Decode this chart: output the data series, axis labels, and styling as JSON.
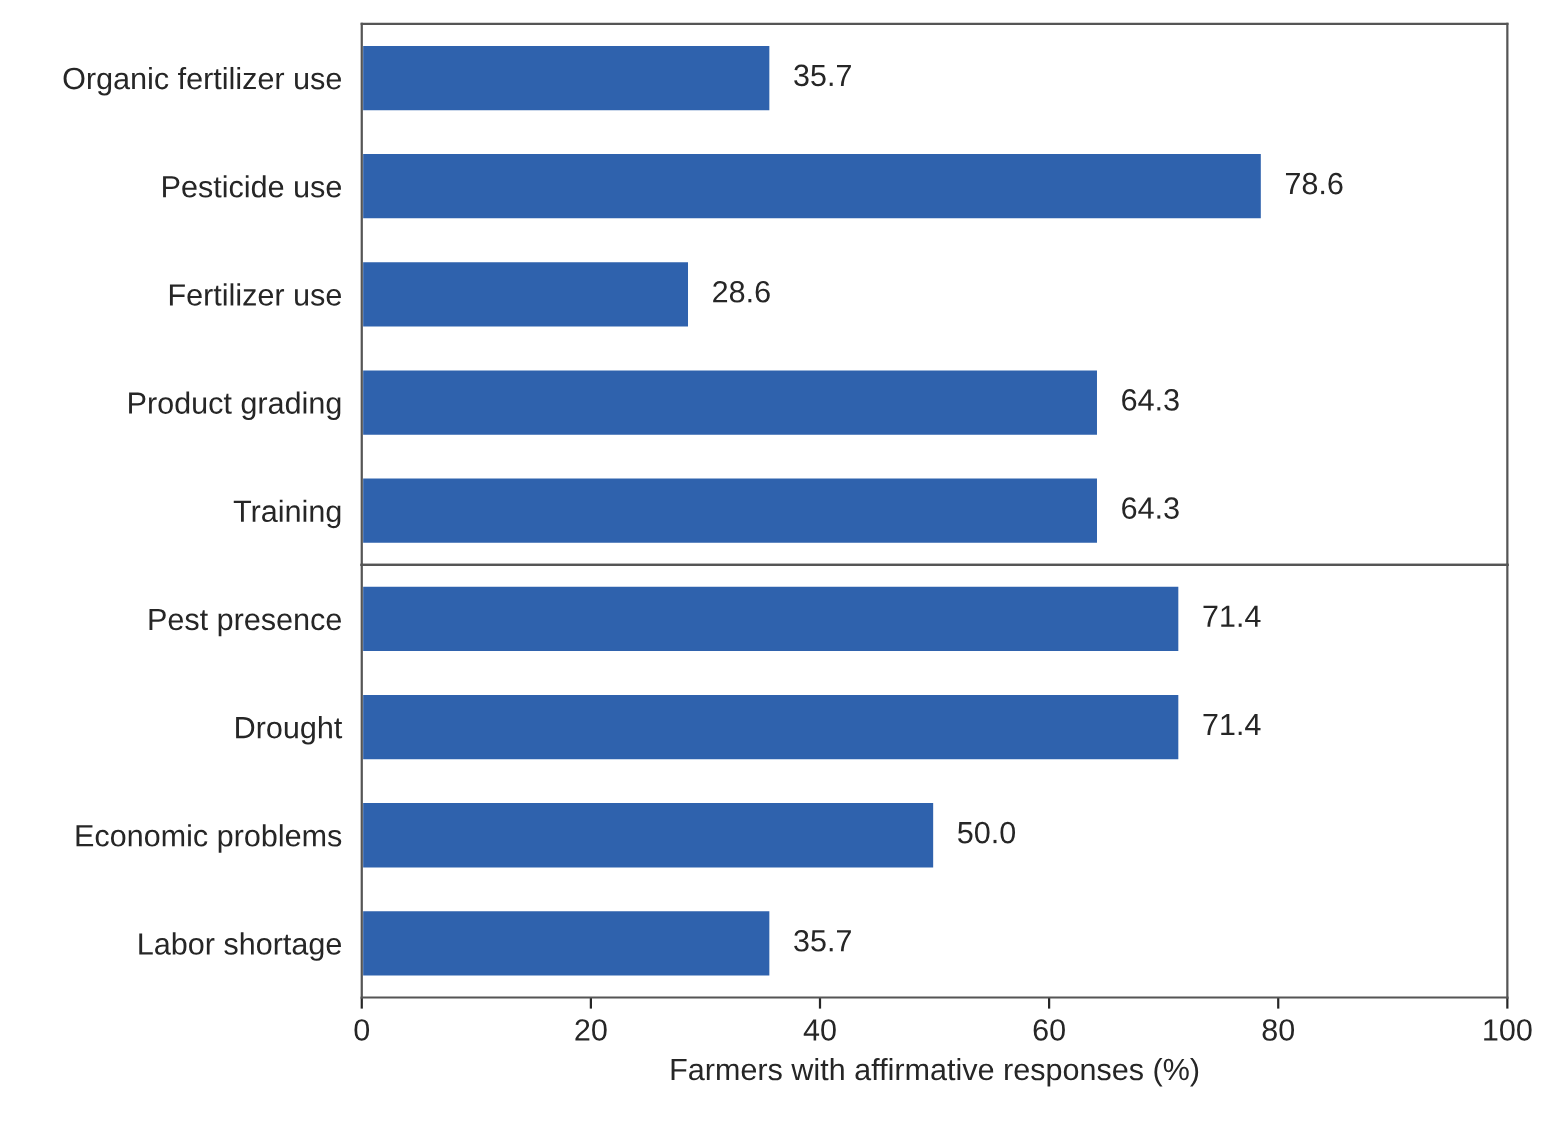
{
  "chart_data": [
    {
      "type": "bar",
      "orientation": "horizontal",
      "categories": [
        "Organic fertilizer use",
        "Pesticide use",
        "Fertilizer use",
        "Product grading",
        "Training"
      ],
      "values": [
        35.7,
        78.6,
        28.6,
        64.3,
        64.3
      ],
      "value_labels": [
        "35.7",
        "78.6",
        "28.6",
        "64.3",
        "64.3"
      ],
      "color": "#2f62ad",
      "xlim": [
        0,
        100
      ],
      "xticks": [
        0,
        20,
        40,
        60,
        80,
        100
      ],
      "tick_labels": "y"
    },
    {
      "type": "bar",
      "orientation": "horizontal",
      "categories": [
        "Pest presence",
        "Drought",
        "Economic problems",
        "Labor shortage"
      ],
      "values": [
        71.4,
        71.4,
        50.0,
        35.7
      ],
      "value_labels": [
        "71.4",
        "71.4",
        "50.0",
        "35.7"
      ],
      "color": "#2f62ad",
      "xlim": [
        0,
        100
      ],
      "xticks": [
        0,
        20,
        40,
        60,
        80,
        100
      ],
      "xlabel": "Farmers with affirmative responses (%)"
    }
  ]
}
